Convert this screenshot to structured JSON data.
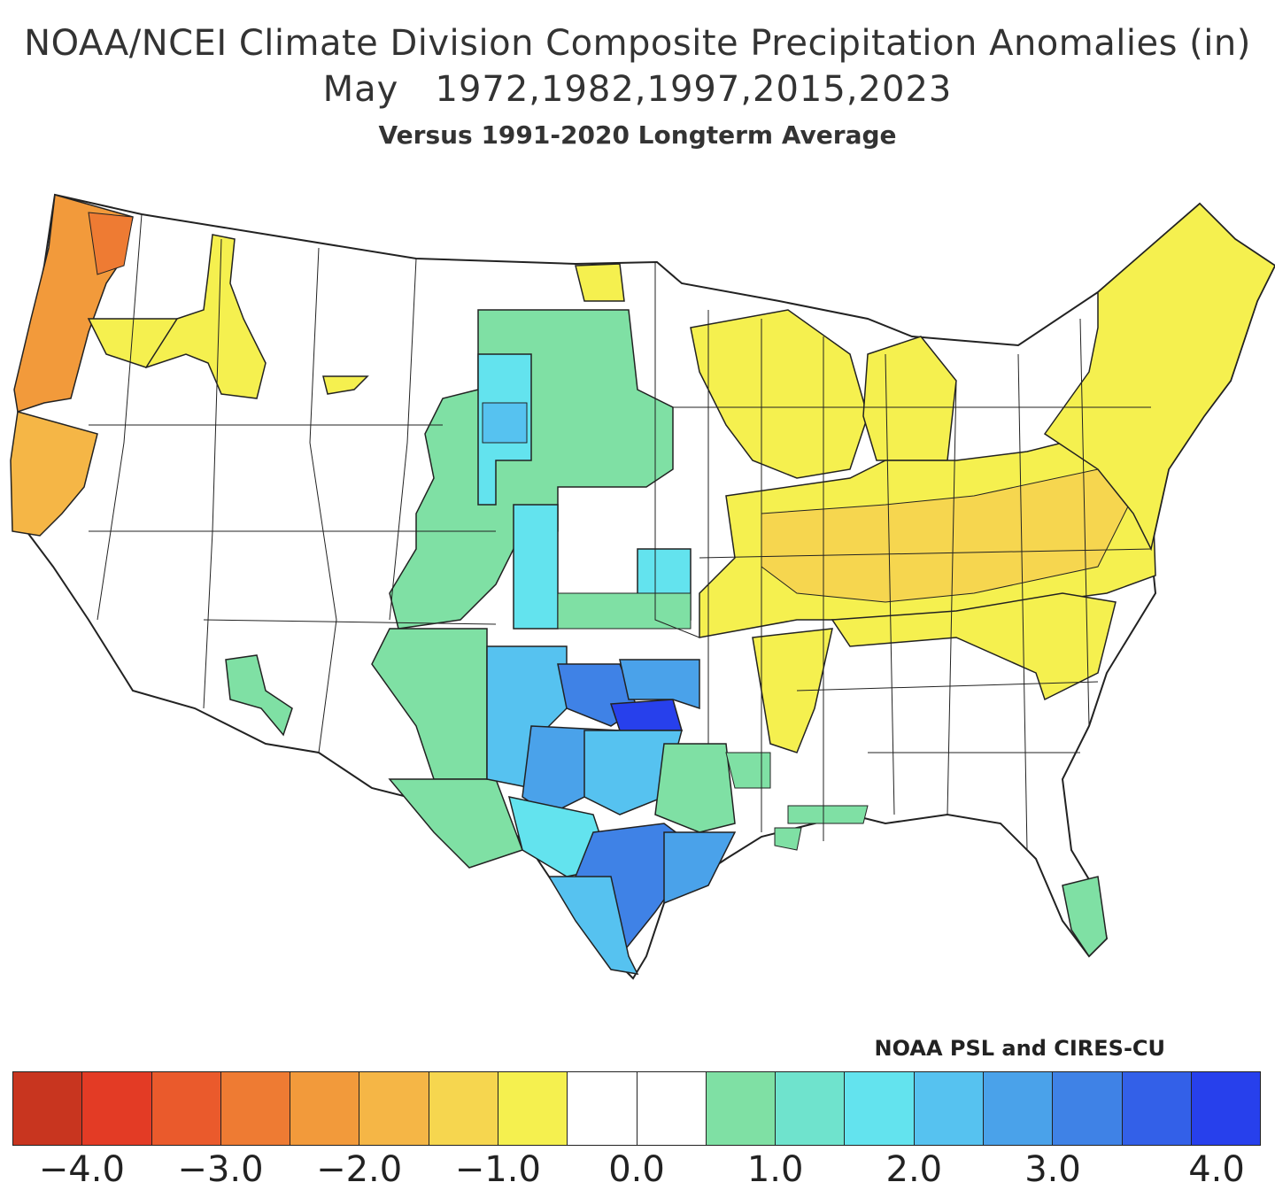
{
  "title": {
    "line1": "NOAA/NCEI Climate Division Composite Precipitation Anomalies (in)",
    "line2": "May   1972,1982,1997,2015,2023",
    "subtitle": "Versus 1991-2020 Longterm Average"
  },
  "credit": "NOAA PSL and CIRES-CU",
  "legend": {
    "colors": [
      "#c8351f",
      "#e33b25",
      "#ea5a2c",
      "#ee7b33",
      "#f29a3b",
      "#f5b646",
      "#f6d64f",
      "#f5f04f",
      "#ffffff",
      "#ffffff",
      "#7fe0a4",
      "#6fe3cd",
      "#63e3ee",
      "#56c2f0",
      "#4aa2ea",
      "#3f82e6",
      "#3360e8",
      "#2740ec"
    ],
    "ticks": [
      {
        "label": "-4.0",
        "index": 1
      },
      {
        "label": "-3.0",
        "index": 3
      },
      {
        "label": "-2.0",
        "index": 5
      },
      {
        "label": "-1.0",
        "index": 7
      },
      {
        "label": "0.0",
        "index": 9
      },
      {
        "label": "1.0",
        "index": 11
      },
      {
        "label": "2.0",
        "index": 13
      },
      {
        "label": "3.0",
        "index": 15
      },
      {
        "label": "4.0",
        "index": 17
      }
    ]
  },
  "regions": [
    {
      "name": "Pacific Northwest coast",
      "anomaly_in": -2.5,
      "color": "#f29a3b"
    },
    {
      "name": "Northern California coast",
      "anomaly_in": -1.5,
      "color": "#f5b646"
    },
    {
      "name": "Idaho / Eastern Washington",
      "anomaly_in": -0.8,
      "color": "#f5f04f"
    },
    {
      "name": "North Dakota (northeast)",
      "anomaly_in": -0.8,
      "color": "#f5f04f"
    },
    {
      "name": "Northern High Plains",
      "anomaly_in": 1.0,
      "color": "#7fe0a4"
    },
    {
      "name": "Wyoming / Colorado",
      "anomaly_in": 1.5,
      "color": "#6fe3cd"
    },
    {
      "name": "Oklahoma central",
      "anomaly_in": 3.8,
      "color": "#2740ec"
    },
    {
      "name": "Texas (central / coast)",
      "anomaly_in": 3.0,
      "color": "#3f82e6"
    },
    {
      "name": "Texas (west)",
      "anomaly_in": 2.0,
      "color": "#63e3ee"
    },
    {
      "name": "Ohio Valley",
      "anomaly_in": -1.5,
      "color": "#f6d64f"
    },
    {
      "name": "Upper Midwest / Great Lakes",
      "anomaly_in": -0.8,
      "color": "#f5f04f"
    },
    {
      "name": "Northeast",
      "anomaly_in": -0.8,
      "color": "#f5f04f"
    },
    {
      "name": "South Florida",
      "anomaly_in": 1.0,
      "color": "#7fe0a4"
    },
    {
      "name": "Arizona (central)",
      "anomaly_in": 1.0,
      "color": "#7fe0a4"
    }
  ]
}
